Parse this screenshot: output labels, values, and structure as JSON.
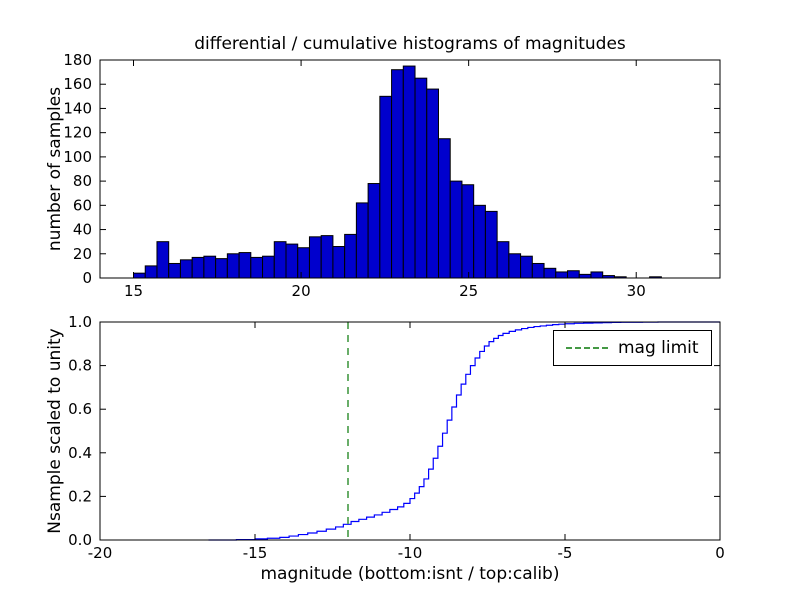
{
  "title": "differential / cumulative histograms of magnitudes",
  "colors": {
    "background": "#ffffff",
    "axis": "#000000",
    "bar_fill": "#0000cd",
    "bar_edge": "#000000",
    "line": "#0000ff",
    "limit_line": "#449944"
  },
  "chart_data": [
    {
      "type": "bar",
      "name": "differential histogram",
      "ylabel": "number of samples",
      "xlim": [
        14,
        32.5
      ],
      "ylim": [
        0,
        180
      ],
      "xticks": [
        15,
        20,
        25,
        30
      ],
      "xtick_labels": [
        "15",
        "20",
        "25",
        "30"
      ],
      "yticks": [
        0,
        20,
        40,
        60,
        80,
        100,
        120,
        140,
        160,
        180
      ],
      "ytick_labels": [
        "0",
        "20",
        "40",
        "60",
        "80",
        "100",
        "120",
        "140",
        "160",
        "180"
      ],
      "grid": false,
      "bin_start": 15.0,
      "bin_width": 0.35,
      "counts": [
        4,
        10,
        30,
        12,
        15,
        17,
        18,
        16,
        20,
        21,
        17,
        18,
        30,
        28,
        25,
        34,
        35,
        26,
        36,
        62,
        78,
        150,
        172,
        175,
        165,
        156,
        115,
        80,
        77,
        60,
        55,
        30,
        20,
        18,
        12,
        8,
        5,
        6,
        3,
        5,
        2,
        1,
        0,
        0,
        1
      ]
    },
    {
      "type": "line",
      "name": "cumulative histogram",
      "ylabel": "Nsample scaled to unity",
      "xlabel": "magnitude (bottom:isnt / top:calib)",
      "xlim": [
        -20,
        0
      ],
      "ylim": [
        0,
        1
      ],
      "xticks": [
        -20,
        -15,
        -10,
        -5,
        0
      ],
      "xtick_labels": [
        "-20",
        "-15",
        "-10",
        "-5",
        "0"
      ],
      "yticks": [
        0.0,
        0.2,
        0.4,
        0.6,
        0.8,
        1.0
      ],
      "ytick_labels": [
        "0.0",
        "0.2",
        "0.4",
        "0.6",
        "0.8",
        "1.0"
      ],
      "grid": false,
      "legend": {
        "label": "mag limit",
        "position": "upper right"
      },
      "mag_limit_x": -12,
      "step_points": [
        [
          -16.5,
          0.0
        ],
        [
          -15.6,
          0.002
        ],
        [
          -15.0,
          0.005
        ],
        [
          -14.6,
          0.008
        ],
        [
          -14.2,
          0.012
        ],
        [
          -13.9,
          0.018
        ],
        [
          -13.6,
          0.025
        ],
        [
          -13.3,
          0.032
        ],
        [
          -13.0,
          0.04
        ],
        [
          -12.7,
          0.05
        ],
        [
          -12.4,
          0.06
        ],
        [
          -12.15,
          0.072
        ],
        [
          -11.9,
          0.085
        ],
        [
          -11.65,
          0.095
        ],
        [
          -11.4,
          0.105
        ],
        [
          -11.15,
          0.115
        ],
        [
          -10.9,
          0.127
        ],
        [
          -10.65,
          0.14
        ],
        [
          -10.4,
          0.152
        ],
        [
          -10.2,
          0.168
        ],
        [
          -10.0,
          0.19
        ],
        [
          -9.85,
          0.215
        ],
        [
          -9.7,
          0.245
        ],
        [
          -9.55,
          0.28
        ],
        [
          -9.4,
          0.325
        ],
        [
          -9.25,
          0.375
        ],
        [
          -9.1,
          0.43
        ],
        [
          -8.95,
          0.49
        ],
        [
          -8.8,
          0.55
        ],
        [
          -8.65,
          0.61
        ],
        [
          -8.5,
          0.665
        ],
        [
          -8.35,
          0.715
        ],
        [
          -8.2,
          0.76
        ],
        [
          -8.05,
          0.8
        ],
        [
          -7.9,
          0.835
        ],
        [
          -7.75,
          0.865
        ],
        [
          -7.6,
          0.89
        ],
        [
          -7.45,
          0.91
        ],
        [
          -7.3,
          0.925
        ],
        [
          -7.15,
          0.938
        ],
        [
          -7.0,
          0.948
        ],
        [
          -6.8,
          0.957
        ],
        [
          -6.6,
          0.964
        ],
        [
          -6.4,
          0.97
        ],
        [
          -6.2,
          0.975
        ],
        [
          -6.0,
          0.979
        ],
        [
          -5.8,
          0.982
        ],
        [
          -5.6,
          0.985
        ],
        [
          -5.4,
          0.988
        ],
        [
          -5.2,
          0.99
        ],
        [
          -5.0,
          0.992
        ],
        [
          -4.7,
          0.994
        ],
        [
          -4.4,
          0.995
        ],
        [
          -4.1,
          0.996
        ],
        [
          -3.8,
          0.997
        ],
        [
          -3.5,
          0.998
        ],
        [
          -3.2,
          0.9985
        ],
        [
          -2.9,
          0.999
        ],
        [
          -2.5,
          0.9995
        ],
        [
          -2.0,
          1.0
        ],
        [
          0.0,
          1.0
        ]
      ]
    }
  ]
}
